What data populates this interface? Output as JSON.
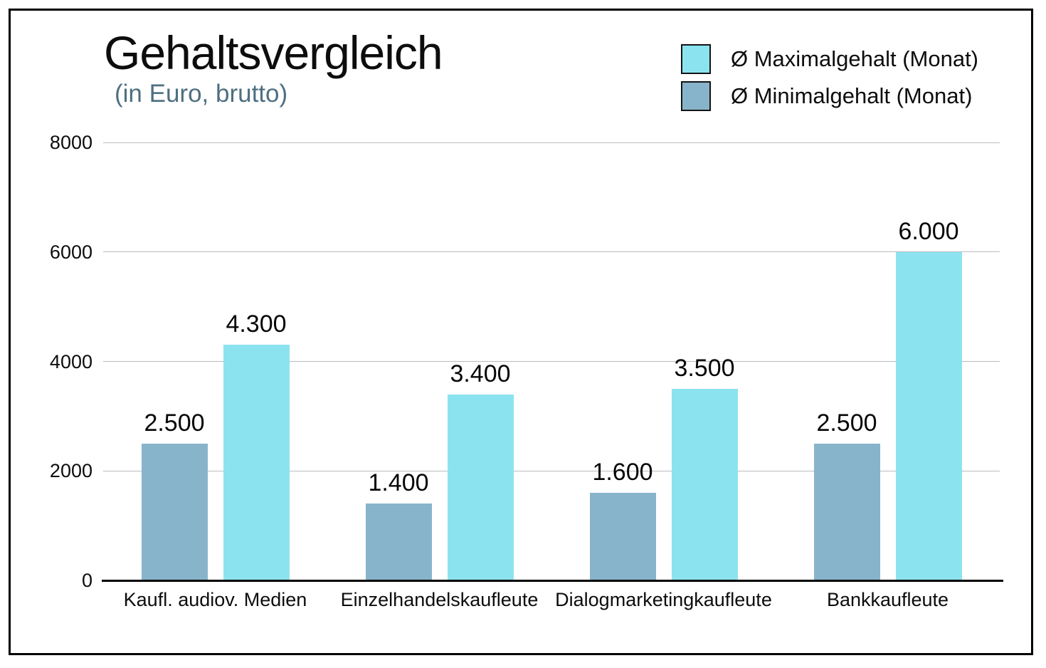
{
  "title": "Gehaltsvergleich",
  "subtitle": "(in Euro, brutto)",
  "colors": {
    "max_bar": "#8ce3f0",
    "min_bar": "#88b4cb",
    "subtitle_text": "#4e6f80",
    "gridline": "#b8bcc0",
    "axis": "#000000",
    "text": "#0d0d0d"
  },
  "legend": {
    "position": "top-right",
    "items": [
      {
        "label": "Ø Maximalgehalt (Monat)",
        "color": "#8ce3f0"
      },
      {
        "label": "Ø Minimalgehalt (Monat)",
        "color": "#88b4cb"
      }
    ]
  },
  "chart_data": {
    "type": "bar",
    "title": "Gehaltsvergleich",
    "subtitle": "(in Euro, brutto)",
    "categories": [
      "Kaufl. audiov. Medien",
      "Einzelhandelskaufleute",
      "Dialogmarketingkaufleute",
      "Bankkaufleute"
    ],
    "series": [
      {
        "name": "Ø Maximalgehalt (Monat)",
        "color": "#8ce3f0",
        "values": [
          4300,
          3400,
          3500,
          6000
        ],
        "labels": [
          "4.300",
          "3.400",
          "3.500",
          "6.000"
        ]
      },
      {
        "name": "Ø Minimalgehalt (Monat)",
        "color": "#88b4cb",
        "values": [
          2500,
          1400,
          1600,
          2500
        ],
        "labels": [
          "2.500",
          "1.400",
          "1.600",
          "2.500"
        ]
      }
    ],
    "xlabel": "",
    "ylabel": "",
    "ylim": [
      0,
      8000
    ],
    "yticks": [
      0,
      2000,
      4000,
      6000,
      8000
    ],
    "grid": true,
    "legend_position": "top-right"
  }
}
